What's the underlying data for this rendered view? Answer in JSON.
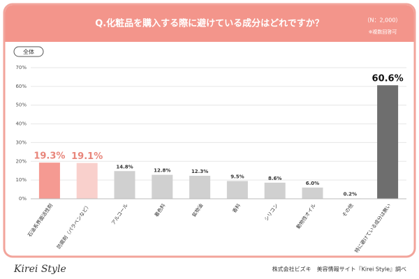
{
  "chart_data": {
    "type": "bar",
    "title": "Q.化粧品を購入する際に避けている成分はどれですか？",
    "sample_note": "（N：2,000）",
    "answer_note": "※複数回答可",
    "segment_label": "全体",
    "categories": [
      "石油系界面活性剤",
      "防腐剤（パラベンなど）",
      "アルコール",
      "着色料",
      "鉱物油",
      "香料",
      "シリコン",
      "動物性オイル",
      "その他",
      "特に避けている成分は無い"
    ],
    "values": [
      19.3,
      19.1,
      14.8,
      12.8,
      12.3,
      9.5,
      8.6,
      6.0,
      0.2,
      60.6
    ],
    "value_labels": [
      "19.3%",
      "19.1%",
      "14.8%",
      "12.8%",
      "12.3%",
      "9.5%",
      "8.6%",
      "6.0%",
      "0.2%",
      "60.6%"
    ],
    "colors": [
      "#f59a92",
      "#f9d0cc",
      "#d0d0d0",
      "#d0d0d0",
      "#d0d0d0",
      "#d0d0d0",
      "#d0d0d0",
      "#d0d0d0",
      "#d0d0d0",
      "#6e6e6e"
    ],
    "label_colors": [
      "#e8857a",
      "#e8857a",
      "#333333",
      "#333333",
      "#333333",
      "#333333",
      "#333333",
      "#333333",
      "#333333",
      "#111111"
    ],
    "ylim": [
      0,
      70
    ],
    "yticks": [
      {
        "value": 0,
        "label": "0%"
      },
      {
        "value": 10,
        "label": "10%"
      },
      {
        "value": 20,
        "label": "20%"
      },
      {
        "value": 30,
        "label": "30%"
      },
      {
        "value": 40,
        "label": "40%"
      },
      {
        "value": 50,
        "label": "50%"
      },
      {
        "value": 60,
        "label": "60%"
      },
      {
        "value": 70,
        "label": "70%"
      }
    ],
    "grid": true,
    "brand": "Kirei Style",
    "source": "株式会社ビズキ　美容情報サイト『Kirei Style』調べ"
  }
}
